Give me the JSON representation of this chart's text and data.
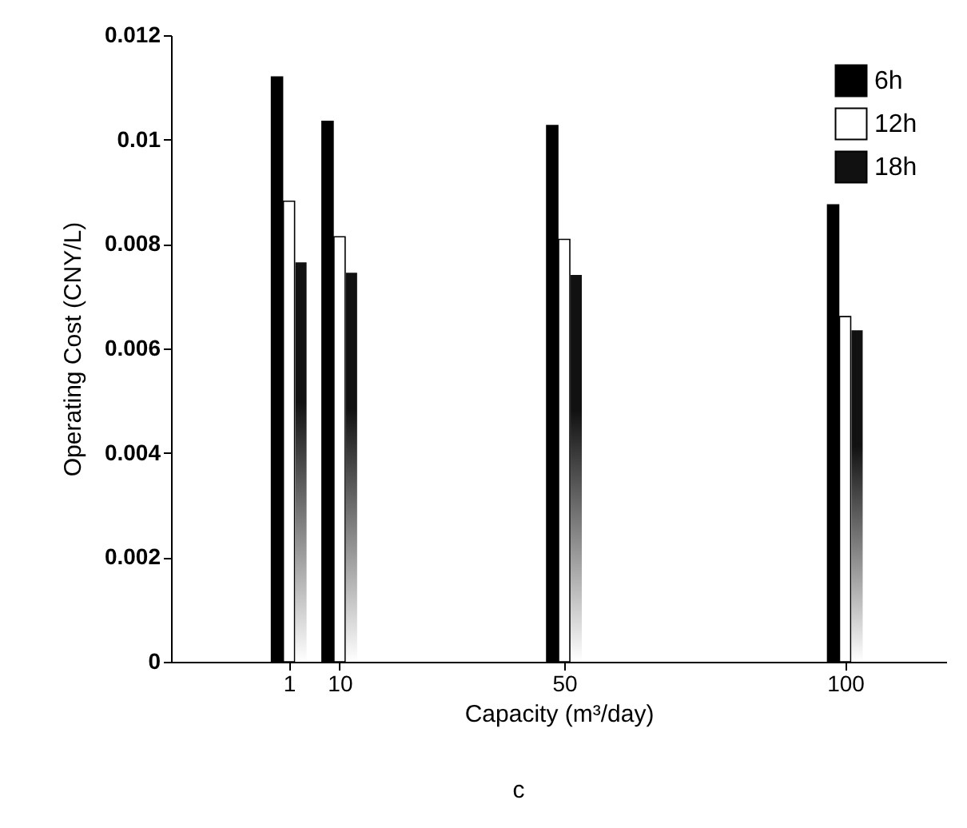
{
  "chart_data": {
    "type": "bar",
    "xlabel": "Capacity (m³/day)",
    "ylabel": "Operating Cost (CNY/L)",
    "x": [
      1,
      10,
      50,
      100
    ],
    "xlim": [
      -20,
      118
    ],
    "xticks": [
      1,
      10,
      50,
      100
    ],
    "ylim": [
      0,
      0.012
    ],
    "yticks": [
      0,
      0.002,
      0.004,
      0.006,
      0.008,
      0.01,
      0.012
    ],
    "series": [
      {
        "name": "6h",
        "color": "#000000",
        "values": [
          0.0112,
          0.01035,
          0.01027,
          0.00875
        ]
      },
      {
        "name": "12h",
        "color": "#ffffff",
        "values": [
          0.00882,
          0.00814,
          0.00809,
          0.00661
        ]
      },
      {
        "name": "18h",
        "color": "#111111",
        "values": [
          0.00765,
          0.00745,
          0.00741,
          0.00635
        ]
      }
    ],
    "legend": "top right",
    "grid": false,
    "annotations": [
      "c"
    ]
  }
}
